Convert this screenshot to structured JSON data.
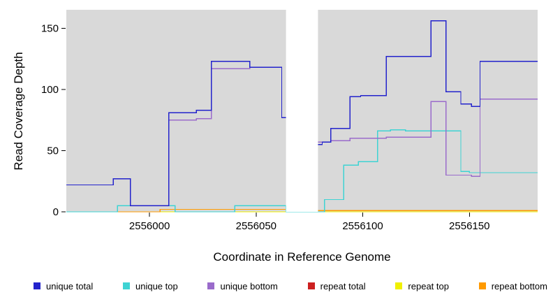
{
  "chart_data": {
    "type": "line",
    "style": "step",
    "title": "",
    "xlabel": "Coordinate in Reference Genome",
    "ylabel": "Read Coverage Depth",
    "xlim": [
      2555961,
      2556182
    ],
    "ylim": [
      0,
      165
    ],
    "x_ticks": [
      2556000,
      2556050,
      2556100,
      2556150
    ],
    "y_ticks": [
      0,
      50,
      100,
      150
    ],
    "grid": false,
    "plot_bg": "#d9d9d9",
    "legend_position": "bottom",
    "masked_region": {
      "x0": 2556064,
      "x1": 2556079,
      "color": "#ffffff"
    },
    "series": [
      {
        "name": "unique total",
        "color": "#2323cc",
        "z": 6,
        "steps": [
          [
            2555961,
            22
          ],
          [
            2555983,
            27
          ],
          [
            2555991,
            5
          ],
          [
            2556009,
            81
          ],
          [
            2556022,
            83
          ],
          [
            2556029,
            123
          ],
          [
            2556047,
            118
          ],
          [
            2556062,
            77
          ],
          [
            2556070,
            55
          ],
          [
            2556081,
            57
          ],
          [
            2556085,
            68
          ],
          [
            2556094,
            94
          ],
          [
            2556099,
            95
          ],
          [
            2556111,
            127
          ],
          [
            2556132,
            156
          ],
          [
            2556139,
            98
          ],
          [
            2556146,
            88
          ],
          [
            2556151,
            86
          ],
          [
            2556155,
            123
          ]
        ]
      },
      {
        "name": "unique top",
        "color": "#3ed3d3",
        "z": 4,
        "steps": [
          [
            2555961,
            0
          ],
          [
            2555985,
            5
          ],
          [
            2556012,
            0
          ],
          [
            2556040,
            5
          ],
          [
            2556064,
            0
          ],
          [
            2556082,
            10
          ],
          [
            2556091,
            38
          ],
          [
            2556098,
            41
          ],
          [
            2556107,
            66
          ],
          [
            2556113,
            67
          ],
          [
            2556120,
            66
          ],
          [
            2556146,
            33
          ],
          [
            2556150,
            32
          ]
        ]
      },
      {
        "name": "unique bottom",
        "color": "#9a6bcb",
        "z": 5,
        "steps": [
          [
            2555961,
            22
          ],
          [
            2555983,
            27
          ],
          [
            2555991,
            5
          ],
          [
            2556009,
            75
          ],
          [
            2556022,
            76
          ],
          [
            2556029,
            117
          ],
          [
            2556047,
            118
          ],
          [
            2556062,
            77
          ],
          [
            2556070,
            57
          ],
          [
            2556085,
            58
          ],
          [
            2556094,
            60
          ],
          [
            2556111,
            61
          ],
          [
            2556132,
            90
          ],
          [
            2556139,
            30
          ],
          [
            2556151,
            29
          ],
          [
            2556155,
            92
          ]
        ]
      },
      {
        "name": "repeat total",
        "color": "#cc2020",
        "z": 2,
        "steps": [
          [
            2555961,
            0
          ],
          [
            2556005,
            2
          ],
          [
            2556070,
            1
          ]
        ]
      },
      {
        "name": "repeat top",
        "color": "#f0f000",
        "z": 1,
        "steps": [
          [
            2555961,
            0
          ]
        ]
      },
      {
        "name": "repeat bottom",
        "color": "#ff9a00",
        "z": 3,
        "steps": [
          [
            2555961,
            0
          ],
          [
            2556005,
            2
          ],
          [
            2556070,
            1
          ]
        ]
      }
    ]
  }
}
